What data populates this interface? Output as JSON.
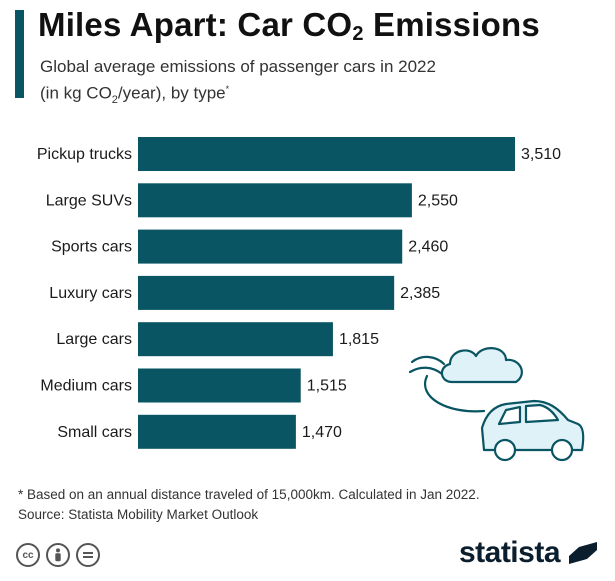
{
  "header": {
    "title_prefix": "Miles Apart: Car CO",
    "title_sub": "2",
    "title_suffix": " Emissions",
    "subtitle_line1": "Global average emissions of passenger cars in 2022",
    "subtitle_line2_a": "(in kg CO",
    "subtitle_line2_sub": "2",
    "subtitle_line2_b": "/year), by type",
    "subtitle_line2_sup": "*"
  },
  "chart_data": {
    "type": "bar",
    "orientation": "horizontal",
    "categories": [
      "Pickup trucks",
      "Large SUVs",
      "Sports cars",
      "Luxury cars",
      "Large cars",
      "Medium cars",
      "Small cars"
    ],
    "values": [
      3510,
      2550,
      2460,
      2385,
      1815,
      1515,
      1470
    ],
    "value_labels": [
      "3,510",
      "2,550",
      "2,460",
      "2,385",
      "1,815",
      "1,515",
      "1,470"
    ],
    "bar_color": "#0a5563",
    "grid": false,
    "xlim": [
      0,
      3510
    ]
  },
  "footer": {
    "note": "* Based on an annual distance traveled of 15,000km. Calculated in Jan 2022.",
    "source": "Source: Statista Mobility Market Outlook",
    "brand": "statista"
  },
  "icons": {
    "illustration": "car-with-exhaust-cloud-icon",
    "license": [
      "creative-commons-icon",
      "attribution-icon",
      "no-derivatives-icon"
    ],
    "brand_logo": "statista-logo-icon"
  },
  "colors": {
    "accent": "#0a5563",
    "illustration_stroke": "#0a5563",
    "illustration_fill": "#dff2f7"
  }
}
